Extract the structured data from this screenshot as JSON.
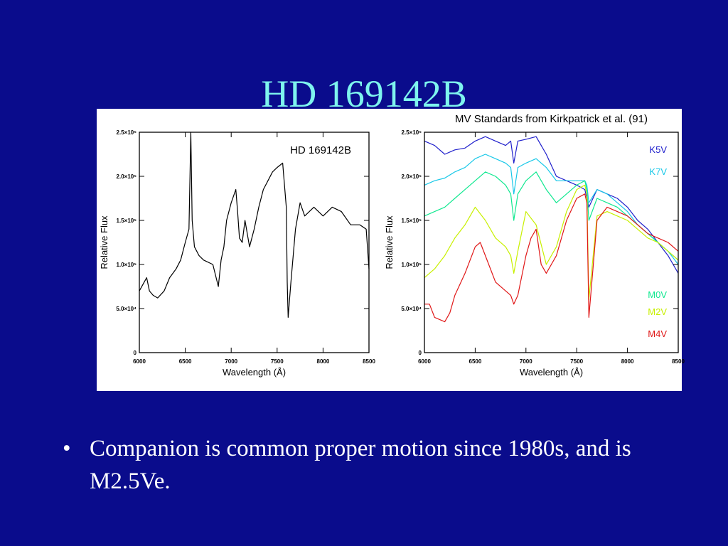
{
  "slide": {
    "title": "HD 169142B",
    "bullets": [
      {
        "symbol": "•",
        "text": "Companion is common proper motion since 1980s, and is M2.5Ve."
      }
    ]
  },
  "colors": {
    "background": "#0a0c8c",
    "title": "#7ef4ee",
    "body_text": "#ffffff"
  },
  "chart_data": [
    {
      "type": "line",
      "annotation": "HD 169142B",
      "xlabel": "Wavelength (Å)",
      "ylabel": "Relative Flux",
      "xlim": [
        6000,
        8500
      ],
      "ylim": [
        0,
        250000
      ],
      "xticks": [
        "6000",
        "6500",
        "7000",
        "7500",
        "8000",
        "8500"
      ],
      "yticks": [
        "0",
        "5.0×10⁴",
        "1.0×10⁵",
        "1.5×10⁵",
        "2.0×10⁵",
        "2.5×10⁵"
      ],
      "series": [
        {
          "name": "HD 169142B",
          "color": "#000000",
          "x": [
            6000,
            6080,
            6110,
            6150,
            6200,
            6270,
            6330,
            6400,
            6450,
            6500,
            6540,
            6560,
            6575,
            6600,
            6650,
            6700,
            6800,
            6860,
            6890,
            6920,
            6950,
            7000,
            7050,
            7070,
            7090,
            7120,
            7150,
            7200,
            7250,
            7300,
            7350,
            7400,
            7450,
            7500,
            7560,
            7600,
            7610,
            7620,
            7650,
            7700,
            7750,
            7800,
            7900,
            8000,
            8100,
            8200,
            8300,
            8400,
            8470,
            8500
          ],
          "y": [
            70000,
            85000,
            70000,
            65000,
            62000,
            70000,
            85000,
            95000,
            105000,
            125000,
            140000,
            250000,
            150000,
            120000,
            110000,
            105000,
            100000,
            75000,
            105000,
            120000,
            150000,
            170000,
            185000,
            160000,
            130000,
            125000,
            150000,
            120000,
            140000,
            165000,
            185000,
            195000,
            205000,
            210000,
            215000,
            165000,
            80000,
            40000,
            80000,
            140000,
            170000,
            155000,
            165000,
            155000,
            165000,
            160000,
            145000,
            145000,
            140000,
            95000
          ]
        }
      ]
    },
    {
      "type": "line",
      "title": "MV Standards from Kirkpatrick et al. (91)",
      "xlabel": "Wavelength (Å)",
      "ylabel": "Relative Flux",
      "xlim": [
        6000,
        8500
      ],
      "ylim": [
        0,
        250000
      ],
      "xticks": [
        "6000",
        "6500",
        "7000",
        "7500",
        "8000",
        "8500"
      ],
      "yticks": [
        "0",
        "5.0×10⁴",
        "1.0×10⁵",
        "1.5×10⁵",
        "2.0×10⁵",
        "2.5×10⁵"
      ],
      "legend_placement": "right",
      "series": [
        {
          "name": "K5V",
          "color": "#2020cc",
          "x": [
            6000,
            6100,
            6200,
            6300,
            6400,
            6500,
            6600,
            6700,
            6800,
            6850,
            6880,
            6920,
            7000,
            7100,
            7200,
            7300,
            7400,
            7500,
            7580,
            7600,
            7620,
            7700,
            7800,
            7900,
            8000,
            8100,
            8200,
            8300,
            8400,
            8500
          ],
          "y": [
            240000,
            235000,
            225000,
            230000,
            232000,
            240000,
            245000,
            240000,
            235000,
            240000,
            215000,
            240000,
            242000,
            245000,
            225000,
            200000,
            195000,
            190000,
            185000,
            175000,
            165000,
            185000,
            180000,
            175000,
            165000,
            150000,
            140000,
            125000,
            110000,
            90000
          ]
        },
        {
          "name": "K7V",
          "color": "#18c8e8",
          "x": [
            6000,
            6100,
            6200,
            6300,
            6400,
            6500,
            6600,
            6700,
            6800,
            6850,
            6880,
            6920,
            7000,
            7100,
            7200,
            7300,
            7400,
            7500,
            7580,
            7600,
            7620,
            7700,
            7800,
            7900,
            8000,
            8100,
            8200,
            8300,
            8400,
            8500
          ],
          "y": [
            190000,
            195000,
            198000,
            205000,
            210000,
            220000,
            225000,
            220000,
            215000,
            210000,
            180000,
            210000,
            215000,
            220000,
            210000,
            195000,
            195000,
            195000,
            195000,
            190000,
            170000,
            185000,
            180000,
            170000,
            160000,
            145000,
            135000,
            125000,
            115000,
            100000
          ]
        },
        {
          "name": "M0V",
          "color": "#10e890",
          "x": [
            6000,
            6100,
            6200,
            6300,
            6400,
            6500,
            6600,
            6700,
            6800,
            6850,
            6880,
            6920,
            7000,
            7100,
            7200,
            7300,
            7400,
            7500,
            7580,
            7600,
            7620,
            7700,
            7800,
            7900,
            8000,
            8100,
            8200,
            8300,
            8400,
            8500
          ],
          "y": [
            155000,
            160000,
            165000,
            175000,
            185000,
            195000,
            205000,
            200000,
            190000,
            180000,
            150000,
            180000,
            195000,
            205000,
            185000,
            170000,
            180000,
            190000,
            195000,
            185000,
            150000,
            175000,
            170000,
            165000,
            155000,
            145000,
            135000,
            125000,
            115000,
            105000
          ]
        },
        {
          "name": "M2V",
          "color": "#c8f000",
          "x": [
            6000,
            6100,
            6200,
            6300,
            6400,
            6500,
            6600,
            6700,
            6800,
            6850,
            6880,
            6920,
            7000,
            7100,
            7200,
            7300,
            7400,
            7500,
            7580,
            7600,
            7620,
            7700,
            7800,
            7900,
            8000,
            8100,
            8200,
            8300,
            8400,
            8500
          ],
          "y": [
            85000,
            95000,
            110000,
            130000,
            145000,
            165000,
            150000,
            130000,
            120000,
            110000,
            90000,
            115000,
            160000,
            145000,
            100000,
            120000,
            160000,
            185000,
            190000,
            180000,
            60000,
            155000,
            160000,
            155000,
            150000,
            140000,
            130000,
            125000,
            115000,
            105000
          ]
        },
        {
          "name": "M4V",
          "color": "#e01818",
          "x": [
            6000,
            6050,
            6100,
            6200,
            6250,
            6300,
            6400,
            6500,
            6550,
            6600,
            6700,
            6800,
            6850,
            6880,
            6920,
            7000,
            7050,
            7100,
            7150,
            7200,
            7300,
            7400,
            7500,
            7580,
            7600,
            7620,
            7700,
            7800,
            7900,
            8000,
            8100,
            8200,
            8300,
            8400,
            8500
          ],
          "y": [
            55000,
            55000,
            40000,
            35000,
            45000,
            65000,
            90000,
            120000,
            125000,
            110000,
            80000,
            70000,
            65000,
            55000,
            65000,
            110000,
            130000,
            140000,
            100000,
            90000,
            110000,
            150000,
            175000,
            180000,
            170000,
            40000,
            150000,
            165000,
            160000,
            155000,
            145000,
            135000,
            130000,
            125000,
            115000
          ]
        }
      ]
    }
  ]
}
